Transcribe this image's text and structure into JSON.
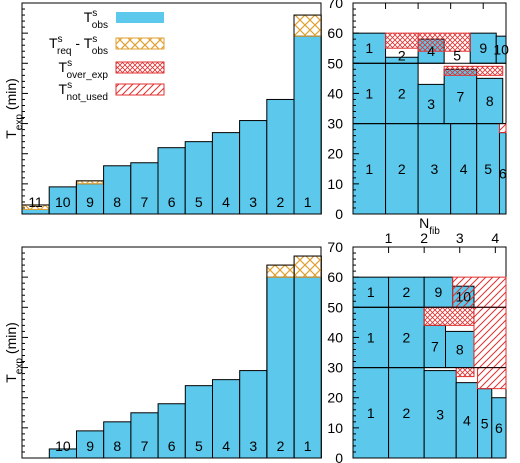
{
  "colors": {
    "obs": "#5bc8ec",
    "req_minus_obs": "#e0a030",
    "over_exp": "#e03030",
    "not_used": "#e03030",
    "frame": "#000000"
  },
  "legend": {
    "entries": [
      {
        "base": "T",
        "sup": "s",
        "sub": "obs",
        "suffix_base": "",
        "suffix_sup": "",
        "suffix_sub": "",
        "pattern": "obs"
      },
      {
        "base": "T",
        "sup": "s",
        "sub": "req",
        "suffix_base": " - T",
        "suffix_sup": "s",
        "suffix_sub": "obs",
        "pattern": "req_minus_obs"
      },
      {
        "base": "T",
        "sup": "s",
        "sub": "over_exp",
        "suffix_base": "",
        "suffix_sup": "",
        "suffix_sub": "",
        "pattern": "over_exp"
      },
      {
        "base": "T",
        "sup": "s",
        "sub": "not_used",
        "suffix_base": "",
        "suffix_sup": "",
        "suffix_sub": "",
        "pattern": "not_used"
      }
    ]
  },
  "chart_data": [
    {
      "type": "bar",
      "panel": "top-left",
      "ylabel": {
        "base": "T",
        "sub": "exp",
        "unit": " (min)"
      },
      "categories": [
        "11",
        "10",
        "9",
        "8",
        "7",
        "6",
        "5",
        "4",
        "3",
        "2",
        "1"
      ],
      "series": [
        {
          "name": "obs",
          "values": [
            1.5,
            9,
            10,
            16,
            17,
            22,
            24,
            27,
            31,
            38,
            59
          ]
        },
        {
          "name": "req_minus_obs",
          "values": [
            1.5,
            0,
            1,
            0,
            0,
            0,
            0,
            0,
            0,
            0,
            7
          ]
        }
      ],
      "ylim": [
        0,
        70
      ]
    },
    {
      "type": "bar",
      "panel": "top-right",
      "xlabel": {
        "base": "N",
        "sub": "fib"
      },
      "xticks": [
        "1",
        "2",
        "3",
        "4"
      ],
      "yticks": [
        "0",
        "10",
        "20",
        "30",
        "40",
        "50",
        "60",
        "70"
      ],
      "xlim": [
        0,
        4.7
      ],
      "ylim": [
        0,
        70
      ],
      "blocks": [
        {
          "label": "1",
          "x0": 0,
          "x1": 1,
          "y0": 0,
          "y1": 30
        },
        {
          "label": "2",
          "x0": 1,
          "x1": 2,
          "y0": 0,
          "y1": 30
        },
        {
          "label": "3",
          "x0": 2,
          "x1": 3,
          "y0": 0,
          "y1": 30
        },
        {
          "label": "4",
          "x0": 3,
          "x1": 3.8,
          "y0": 0,
          "y1": 30
        },
        {
          "label": "5",
          "x0": 3.8,
          "x1": 4.5,
          "y0": 0,
          "y1": 30
        },
        {
          "label": "6",
          "x0": 4.5,
          "x1": 4.7,
          "y0": 0,
          "y1": 27
        },
        {
          "label": "1",
          "x0": 0,
          "x1": 1,
          "y0": 30,
          "y1": 50
        },
        {
          "label": "2",
          "x0": 1,
          "x1": 2,
          "y0": 30,
          "y1": 50
        },
        {
          "label": "3",
          "x0": 2,
          "x1": 2.8,
          "y0": 30,
          "y1": 43
        },
        {
          "label": "7",
          "x0": 2.8,
          "x1": 3.8,
          "y0": 30,
          "y1": 48
        },
        {
          "label": "8",
          "x0": 3.8,
          "x1": 4.6,
          "y0": 30,
          "y1": 45
        },
        {
          "label": "1",
          "x0": 0,
          "x1": 1,
          "y0": 50,
          "y1": 60
        },
        {
          "label": "2",
          "x0": 1,
          "x1": 2,
          "y0": 50,
          "y1": 52
        },
        {
          "label": "4",
          "x0": 2,
          "x1": 2.8,
          "y0": 50,
          "y1": 58
        },
        {
          "label": "5",
          "x0": 2.8,
          "x1": 3.6,
          "y0": 50,
          "y1": 50
        },
        {
          "label": "9",
          "x0": 3.6,
          "x1": 4.4,
          "y0": 50,
          "y1": 60
        },
        {
          "label": "10",
          "x0": 4.4,
          "x1": 4.7,
          "y0": 50,
          "y1": 59
        }
      ],
      "hatches": [
        {
          "pattern": "over_exp",
          "x0": 1,
          "x1": 2,
          "y0": 55,
          "y1": 60
        },
        {
          "pattern": "over_exp",
          "x0": 2,
          "x1": 3.6,
          "y0": 54,
          "y1": 60
        },
        {
          "pattern": "over_exp",
          "x0": 2.8,
          "x1": 4.6,
          "y0": 46,
          "y1": 49
        },
        {
          "pattern": "not_used",
          "x0": 4.5,
          "x1": 4.7,
          "y0": 27,
          "y1": 30
        }
      ]
    },
    {
      "type": "bar",
      "panel": "bottom-left",
      "ylabel": {
        "base": "T",
        "sub": "exp",
        "unit": " (min)"
      },
      "categories": [
        "10",
        "9",
        "8",
        "7",
        "6",
        "5",
        "4",
        "3",
        "2",
        "1"
      ],
      "series": [
        {
          "name": "obs",
          "values": [
            3,
            9,
            12,
            15,
            18,
            24,
            26,
            29,
            60,
            60
          ]
        },
        {
          "name": "req_minus_obs",
          "values": [
            0,
            0,
            0,
            0,
            0,
            0,
            0,
            0,
            4,
            7
          ]
        }
      ],
      "ylim": [
        0,
        70
      ]
    },
    {
      "type": "bar",
      "panel": "bottom-right",
      "xlabel": {
        "base": "N",
        "sub": "fib"
      },
      "xticks": [
        "1",
        "2",
        "3",
        "4"
      ],
      "yticks": [
        "0",
        "10",
        "20",
        "30",
        "40",
        "50",
        "60",
        "70"
      ],
      "xlim": [
        0,
        4.3
      ],
      "ylim": [
        0,
        70
      ],
      "blocks": [
        {
          "label": "1",
          "x0": 0,
          "x1": 1,
          "y0": 0,
          "y1": 30
        },
        {
          "label": "2",
          "x0": 1,
          "x1": 2,
          "y0": 0,
          "y1": 30
        },
        {
          "label": "3",
          "x0": 2,
          "x1": 2.9,
          "y0": 0,
          "y1": 29
        },
        {
          "label": "4",
          "x0": 2.9,
          "x1": 3.5,
          "y0": 0,
          "y1": 25
        },
        {
          "label": "5",
          "x0": 3.5,
          "x1": 3.9,
          "y0": 0,
          "y1": 23
        },
        {
          "label": "6",
          "x0": 3.9,
          "x1": 4.3,
          "y0": 0,
          "y1": 20
        },
        {
          "label": "1",
          "x0": 0,
          "x1": 1,
          "y0": 30,
          "y1": 50
        },
        {
          "label": "2",
          "x0": 1,
          "x1": 2,
          "y0": 30,
          "y1": 50
        },
        {
          "label": "7",
          "x0": 2,
          "x1": 2.6,
          "y0": 30,
          "y1": 44
        },
        {
          "label": "8",
          "x0": 2.6,
          "x1": 3.4,
          "y0": 30,
          "y1": 42
        },
        {
          "label": "1",
          "x0": 0,
          "x1": 1,
          "y0": 50,
          "y1": 60
        },
        {
          "label": "2",
          "x0": 1,
          "x1": 2,
          "y0": 50,
          "y1": 60
        },
        {
          "label": "9",
          "x0": 2,
          "x1": 2.8,
          "y0": 50,
          "y1": 60
        },
        {
          "label": "10",
          "x0": 2.8,
          "x1": 3.4,
          "y0": 50,
          "y1": 57
        }
      ],
      "hatches": [
        {
          "pattern": "over_exp",
          "x0": 2,
          "x1": 3.4,
          "y0": 44,
          "y1": 50
        },
        {
          "pattern": "over_exp",
          "x0": 2.9,
          "x1": 3.4,
          "y0": 27,
          "y1": 30
        },
        {
          "pattern": "not_used",
          "x0": 2.8,
          "x1": 4.3,
          "y0": 50,
          "y1": 60
        },
        {
          "pattern": "not_used",
          "x0": 3.4,
          "x1": 4.3,
          "y0": 30,
          "y1": 50
        },
        {
          "pattern": "not_used",
          "x0": 3.5,
          "x1": 4.3,
          "y0": 23,
          "y1": 30
        }
      ]
    }
  ]
}
